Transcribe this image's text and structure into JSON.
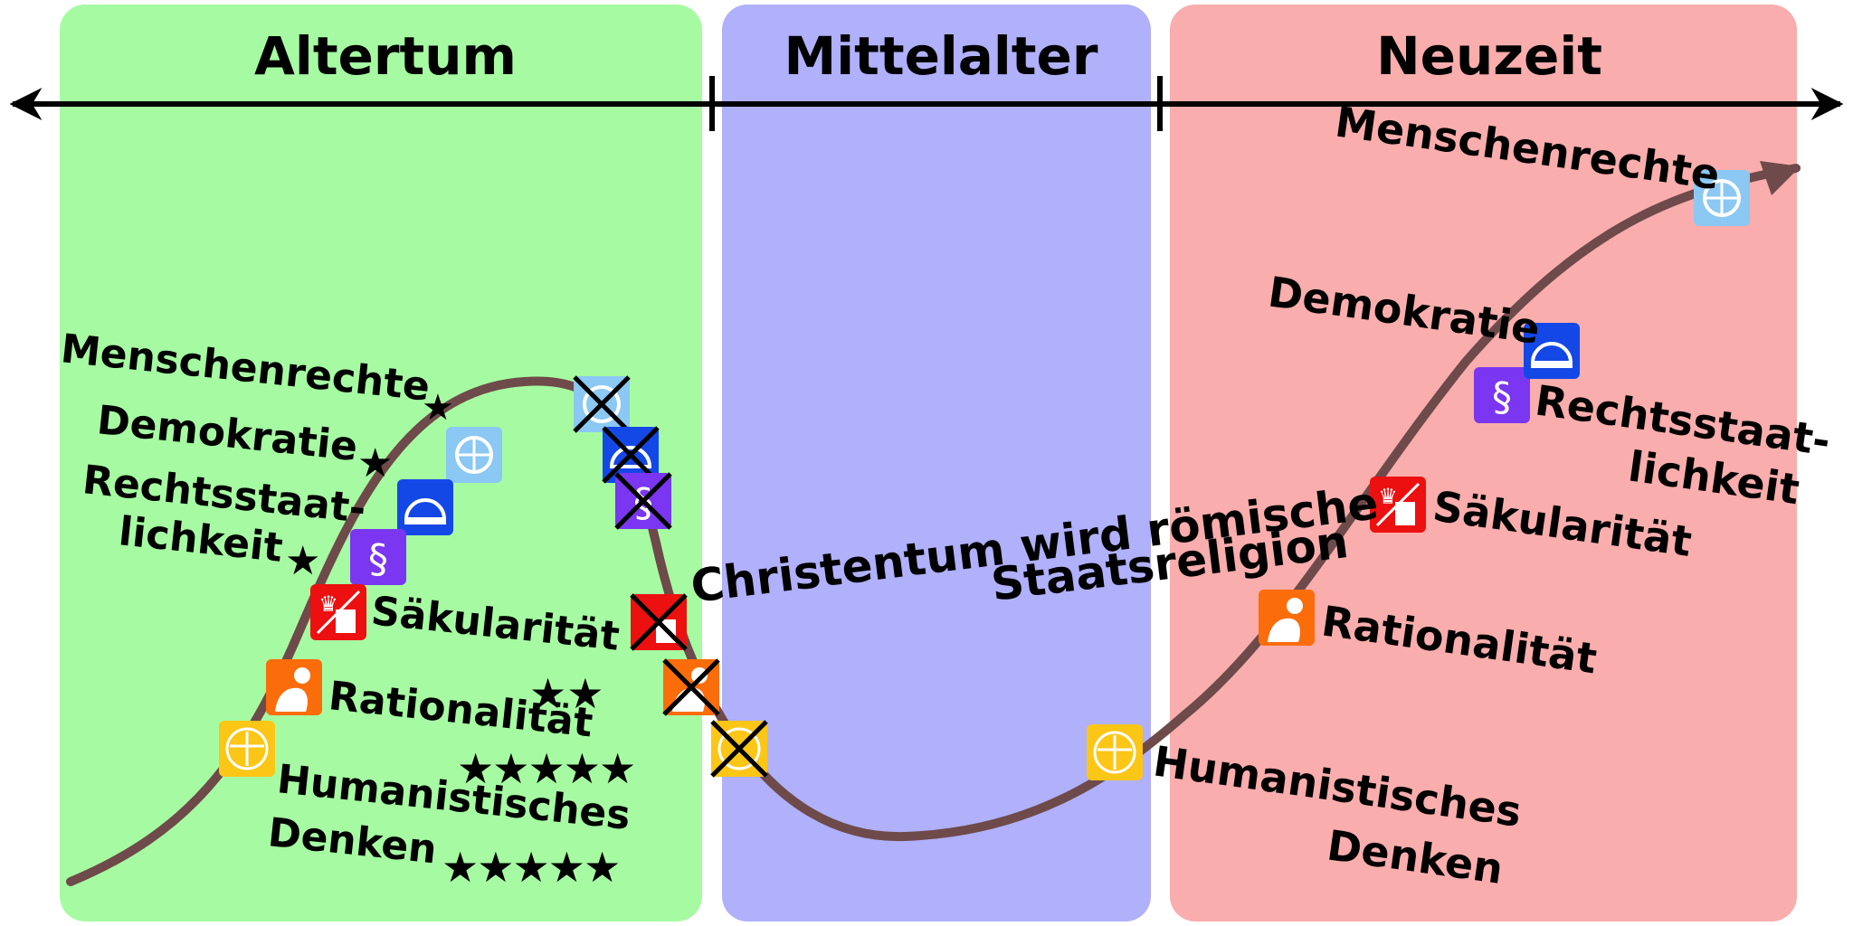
{
  "eras": [
    {
      "name": "Altertum",
      "color": "#a6fba2"
    },
    {
      "name": "Mittelalter",
      "color": "#b0b0fb"
    },
    {
      "name": "Neuzeit",
      "color": "#f9adad"
    }
  ],
  "icons": {
    "un": {
      "color": "#8bc8f3",
      "glyph": "⊕"
    },
    "parliament": {
      "color": "#1448e6",
      "glyph": "◓"
    },
    "law": {
      "color": "#7a36f0",
      "glyph": "§"
    },
    "secular": {
      "color": "#ec1010",
      "glyph": "♛"
    },
    "rational": {
      "color": "#fb6c0b",
      "glyph": "☗"
    },
    "humanist": {
      "color": "#fbc616",
      "glyph": "✥"
    }
  },
  "antiquity_labels": {
    "menschenrechte": "Menschenrechte",
    "demokratie": "Demokratie",
    "rechtsstaat_1": "Rechtsstaat-",
    "rechtsstaat_2": "lichkeit",
    "saekularitaet": "Säkularität",
    "rationalitaet": "Rationalität",
    "humanistisch_1": "Humanistisches",
    "humanistisch_2": "Denken"
  },
  "ratings": {
    "menschenrechte": "★",
    "demokratie": "★",
    "rechtsstaat": "★",
    "saekularitaet": "★★",
    "rationalitaet": "★★★★★",
    "humanistisch": "★★★★★"
  },
  "annotation": {
    "line1": "Christentum wird römische",
    "line2": "Staatsreligion"
  },
  "modern_labels": {
    "menschenrechte": "Menschenrechte",
    "demokratie": "Demokratie",
    "rechtsstaat_1": "Rechtsstaat-",
    "rechtsstaat_2": "lichkeit",
    "saekularitaet": "Säkularität",
    "rationalitaet": "Rationalität",
    "humanistisch_1": "Humanistisches",
    "humanistisch_2": "Denken"
  },
  "style": {
    "curve_color": "#6e4a4a",
    "axis_color": "#000000"
  }
}
